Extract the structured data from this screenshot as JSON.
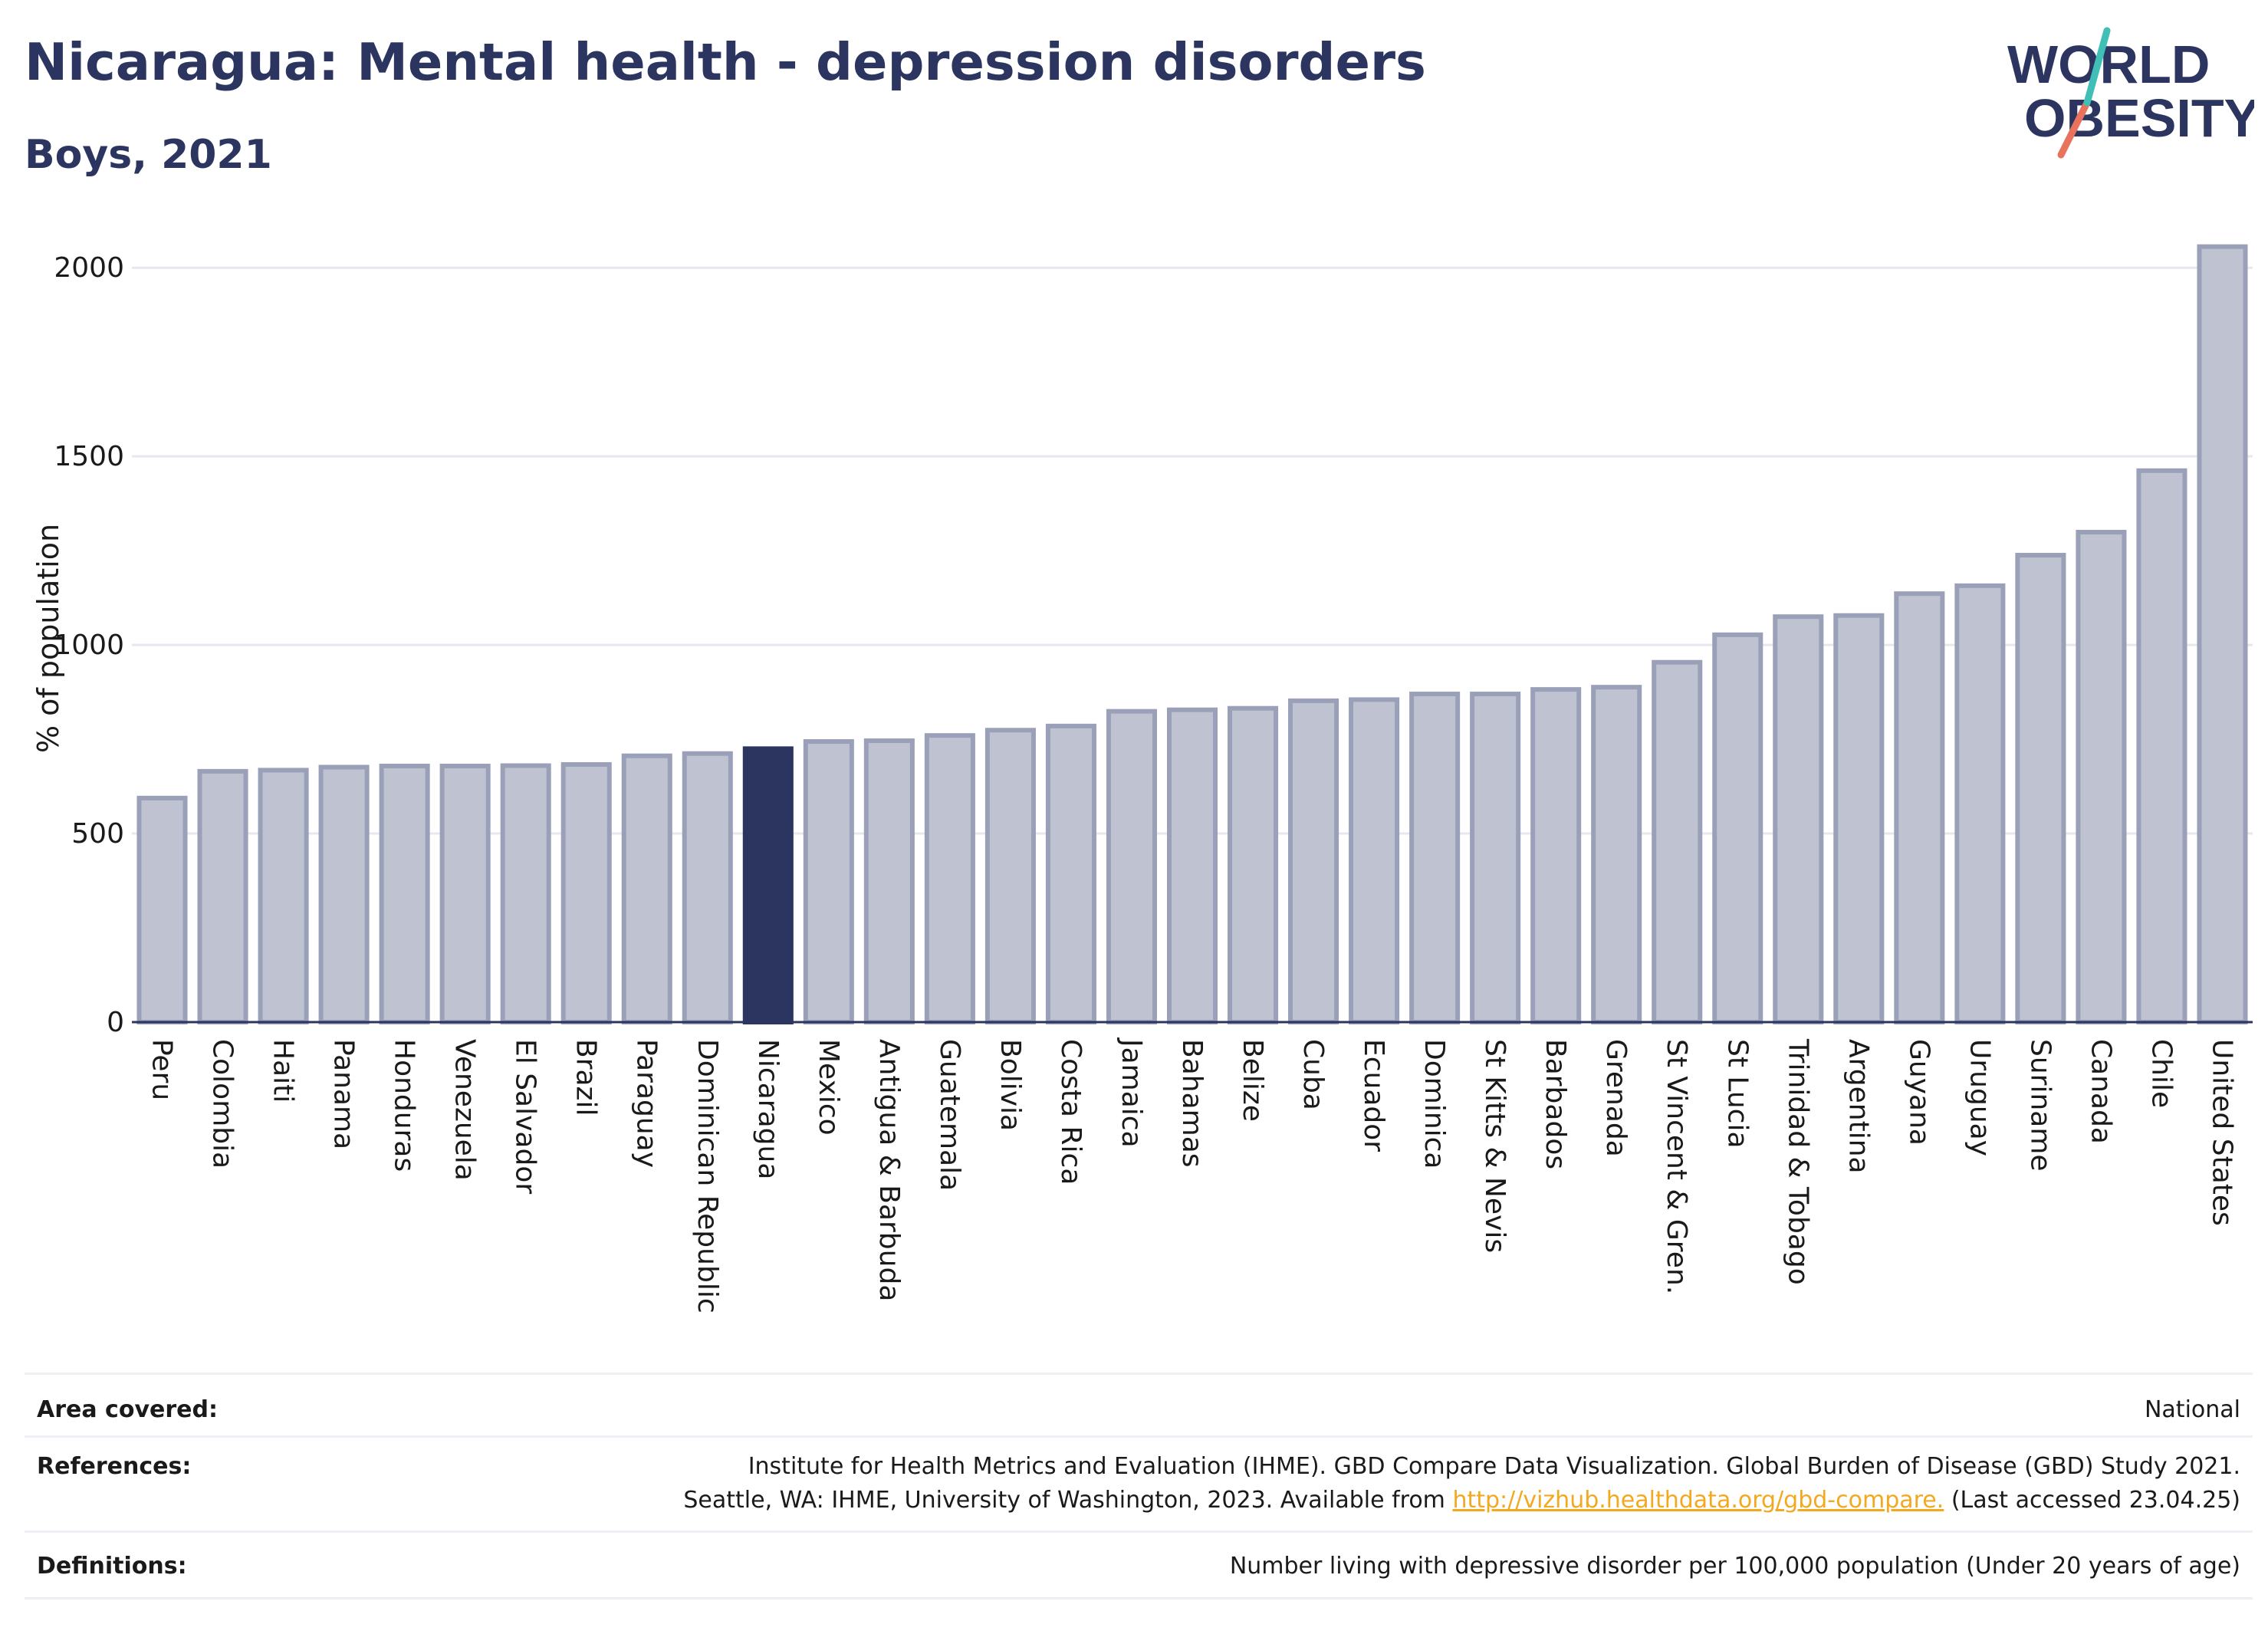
{
  "header": {
    "title": "Nicaragua: Mental health - depression disorders",
    "subtitle": "Boys, 2021"
  },
  "logo": {
    "line1": "WORLD",
    "line2": "OBESITY"
  },
  "colors": {
    "title": "#2b3560",
    "bar": "#bfc3d1",
    "bar_border": "#9aa0b8",
    "highlight": "#2b3560",
    "grid": "#e6e8ef",
    "link": "#f2a91f"
  },
  "chart_data": {
    "type": "bar",
    "ylabel": "% of population",
    "ylim": [
      0,
      2100
    ],
    "yticks": [
      0,
      500,
      1000,
      1500,
      2000
    ],
    "grid": true,
    "highlight": "Nicaragua",
    "categories": [
      "Peru",
      "Colombia",
      "Haiti",
      "Panama",
      "Honduras",
      "Venezuela",
      "El Salvador",
      "Brazil",
      "Paraguay",
      "Dominican Republic",
      "Nicaragua",
      "Mexico",
      "Antigua & Barbuda",
      "Guatemala",
      "Bolivia",
      "Costa Rica",
      "Jamaica",
      "Bahamas",
      "Belize",
      "Cuba",
      "Ecuador",
      "Dominica",
      "St Kitts & Nevis",
      "Barbados",
      "Grenada",
      "St Vincent & Gren.",
      "St Lucia",
      "Trinidad & Tobago",
      "Argentina",
      "Guyana",
      "Uruguay",
      "Suriname",
      "Canada",
      "Chile",
      "United States"
    ],
    "values": [
      594,
      665,
      668,
      676,
      679,
      679,
      680,
      683,
      706,
      712,
      725,
      744,
      746,
      760,
      774,
      785,
      824,
      828,
      832,
      852,
      855,
      870,
      870,
      882,
      888,
      954,
      1027,
      1075,
      1078,
      1136,
      1157,
      1238,
      1299,
      1462,
      2056
    ]
  },
  "info": {
    "area_label": "Area covered:",
    "area_value": "National",
    "references_label": "References:",
    "references_line1": "Institute for Health Metrics and Evaluation (IHME). GBD Compare Data Visualization. Global Burden of Disease (GBD) Study 2021.",
    "references_line2_pre": "Seattle, WA: IHME, University of Washington, 2023. Available from ",
    "references_link": "http://vizhub.healthdata.org/gbd-compare.",
    "references_line2_post": " (Last accessed 23.04.25)",
    "definitions_label": "Definitions:",
    "definitions_value": "Number living with depressive disorder per 100,000 population (Under 20 years of age)"
  }
}
